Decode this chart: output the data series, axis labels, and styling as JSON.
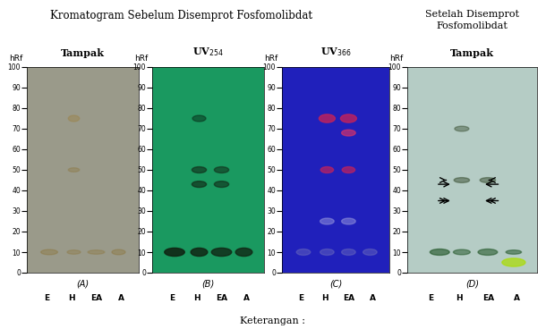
{
  "title_left": "Kromatogram Sebelum Disemprot Fosfomolibdat",
  "title_right_line1": "Setelah Disemprot",
  "title_right_line2": "Fosfomolibdat",
  "panel_labels": [
    "(A)",
    "(B)",
    "(C)",
    "(D)"
  ],
  "panel_subtitles": [
    "Tampak",
    "UV$_{254}$",
    "UV$_{366}$",
    "Tampak"
  ],
  "panel_subtitles_bold": [
    true,
    true,
    true,
    true
  ],
  "lane_labels": [
    "E",
    "H",
    "EA",
    "A"
  ],
  "hrf_label": "hRf",
  "bottom_label": "Keterangan :",
  "bg_colors": [
    "#a8a899",
    "#2db87a",
    "#3535c8",
    "#c8ddd8"
  ],
  "panel_A_bg": "#9a9a8a",
  "panel_B_bg": "#1fa060",
  "panel_C_bg": "#2222bb",
  "panel_D_bg": "#b8ccc8",
  "yticks": [
    0,
    10,
    20,
    30,
    40,
    50,
    60,
    70,
    80,
    90,
    100
  ],
  "figsize": [
    6.1,
    3.68
  ],
  "dpi": 100
}
